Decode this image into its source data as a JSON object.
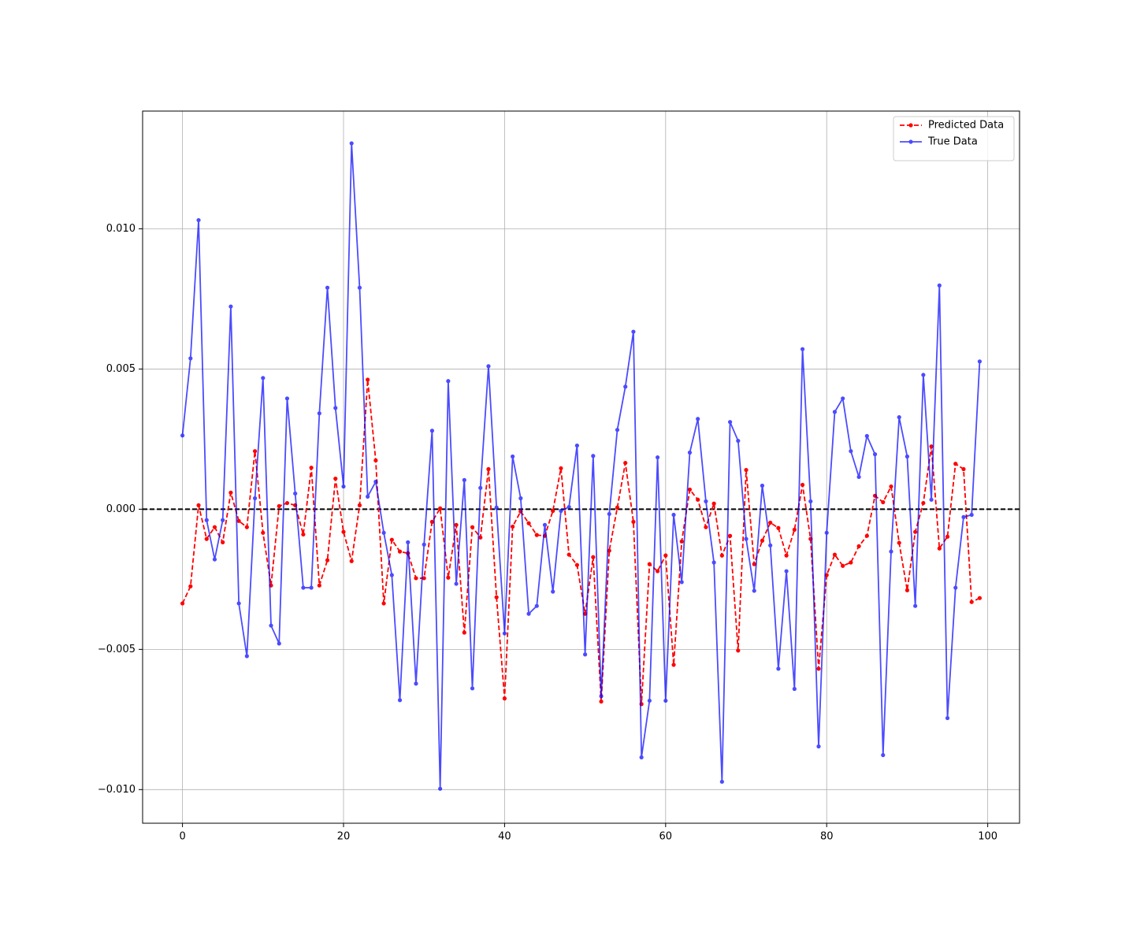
{
  "chart_data": {
    "type": "line",
    "x": [
      0,
      1,
      2,
      3,
      4,
      5,
      6,
      7,
      8,
      9,
      10,
      11,
      12,
      13,
      14,
      15,
      16,
      17,
      18,
      19,
      20,
      21,
      22,
      23,
      24,
      25,
      26,
      27,
      28,
      29,
      30,
      31,
      32,
      33,
      34,
      35,
      36,
      37,
      38,
      39,
      40,
      41,
      42,
      43,
      44,
      45,
      46,
      47,
      48,
      49,
      50,
      51,
      52,
      53,
      54,
      55,
      56,
      57,
      58,
      59,
      60,
      61,
      62,
      63,
      64,
      65,
      66,
      67,
      68,
      69,
      70,
      71,
      72,
      73,
      74,
      75,
      76,
      77,
      78,
      79,
      80,
      81,
      82,
      83,
      84,
      85,
      86,
      87,
      88,
      89,
      90,
      91,
      92,
      93,
      94,
      95,
      96,
      97,
      98,
      99
    ],
    "series": [
      {
        "name": "Predicted Data",
        "color": "#ff0000",
        "linestyle": "dashed",
        "alpha": 1,
        "values": [
          -0.00336,
          -0.00275,
          0.00014,
          -0.00106,
          -0.00064,
          -0.00118,
          0.00059,
          -0.00042,
          -0.00064,
          0.00207,
          -0.00084,
          -0.00272,
          0.00011,
          0.00022,
          0.00014,
          -0.0009,
          0.00148,
          -0.00272,
          -0.00182,
          0.00109,
          -0.00081,
          -0.00185,
          0.00014,
          0.00462,
          0.00174,
          -0.00336,
          -0.00109,
          -0.00151,
          -0.00157,
          -0.00246,
          -0.00246,
          -0.00045,
          3e-05,
          -0.00244,
          -0.00056,
          -0.0044,
          -0.00064,
          -0.00101,
          0.00143,
          -0.00314,
          -0.00675,
          -0.00062,
          -8e-05,
          -0.0005,
          -0.00092,
          -0.00095,
          -6e-05,
          0.00146,
          -0.00162,
          -0.00199,
          -0.00373,
          -0.00171,
          -0.00686,
          -0.00148,
          6e-05,
          0.00165,
          -0.00045,
          -0.00695,
          -0.00196,
          -0.00221,
          -0.00165,
          -0.00555,
          -0.00115,
          0.0007,
          0.00034,
          -0.00064,
          0.0002,
          -0.00165,
          -0.00095,
          -0.00504,
          0.0014,
          -0.00196,
          -0.00112,
          -0.00048,
          -0.00067,
          -0.00165,
          -0.00073,
          0.00087,
          -0.00106,
          -0.00569,
          -0.00235,
          -0.00162,
          -0.00202,
          -0.0019,
          -0.00132,
          -0.00095,
          0.00048,
          0.00025,
          0.00081,
          -0.0012,
          -0.00289,
          -0.00081,
          0.00022,
          0.00224,
          -0.0014,
          -0.00098,
          0.00162,
          0.00143,
          -0.00331,
          -0.00317
        ]
      },
      {
        "name": "True Data",
        "color": "#0000ff",
        "linestyle": "solid",
        "alpha": 0.7,
        "values": [
          0.00263,
          0.00538,
          0.01031,
          -0.00039,
          -0.00179,
          -0.00039,
          0.00723,
          -0.00336,
          -0.00524,
          0.00039,
          0.00468,
          -0.00415,
          -0.00479,
          0.00395,
          0.00056,
          -0.0028,
          -0.0028,
          0.00342,
          0.0079,
          0.00361,
          0.00081,
          0.01305,
          0.0079,
          0.00045,
          0.00098,
          -0.00084,
          -0.00235,
          -0.00681,
          -0.00118,
          -0.00622,
          -0.00126,
          0.0028,
          -0.00997,
          0.00457,
          -0.00266,
          0.00104,
          -0.00639,
          0.00076,
          0.0051,
          6e-05,
          -0.00443,
          0.00188,
          0.00039,
          -0.00373,
          -0.00345,
          -0.00056,
          -0.00294,
          -6e-05,
          8e-05,
          0.00227,
          -0.00518,
          0.0019,
          -0.00667,
          -0.00017,
          0.00283,
          0.00437,
          0.00633,
          -0.00885,
          -0.00683,
          0.00185,
          -0.00683,
          -0.0002,
          -0.0026,
          0.00202,
          0.00322,
          0.00028,
          -0.0019,
          -0.00972,
          0.00311,
          0.00244,
          -0.00106,
          -0.00291,
          0.00084,
          -0.00129,
          -0.00569,
          -0.00221,
          -0.00641,
          0.00571,
          0.00028,
          -0.00846,
          -0.00084,
          0.00347,
          0.00395,
          0.00207,
          0.00115,
          0.00261,
          0.00196,
          -0.00877,
          -0.00151,
          0.00328,
          0.00188,
          -0.00345,
          0.00479,
          0.00034,
          0.00798,
          -0.00745,
          -0.0028,
          -0.00028,
          -0.0002,
          0.00527
        ]
      }
    ],
    "xlim": [
      -4.95,
      103.95
    ],
    "ylim": [
      -0.0112,
      0.0142
    ],
    "xticks": [
      0,
      20,
      40,
      60,
      80,
      100
    ],
    "yticks": [
      {
        "value": -0.01,
        "label": "−0.010"
      },
      {
        "value": -0.005,
        "label": "−0.005"
      },
      {
        "value": 0,
        "label": "0.000"
      },
      {
        "value": 0.005,
        "label": "0.005"
      },
      {
        "value": 0.01,
        "label": "0.010"
      }
    ],
    "reference_line": {
      "y": 0,
      "color": "#000000",
      "linestyle": "dashed"
    },
    "grid": true,
    "legend": "upper right"
  }
}
